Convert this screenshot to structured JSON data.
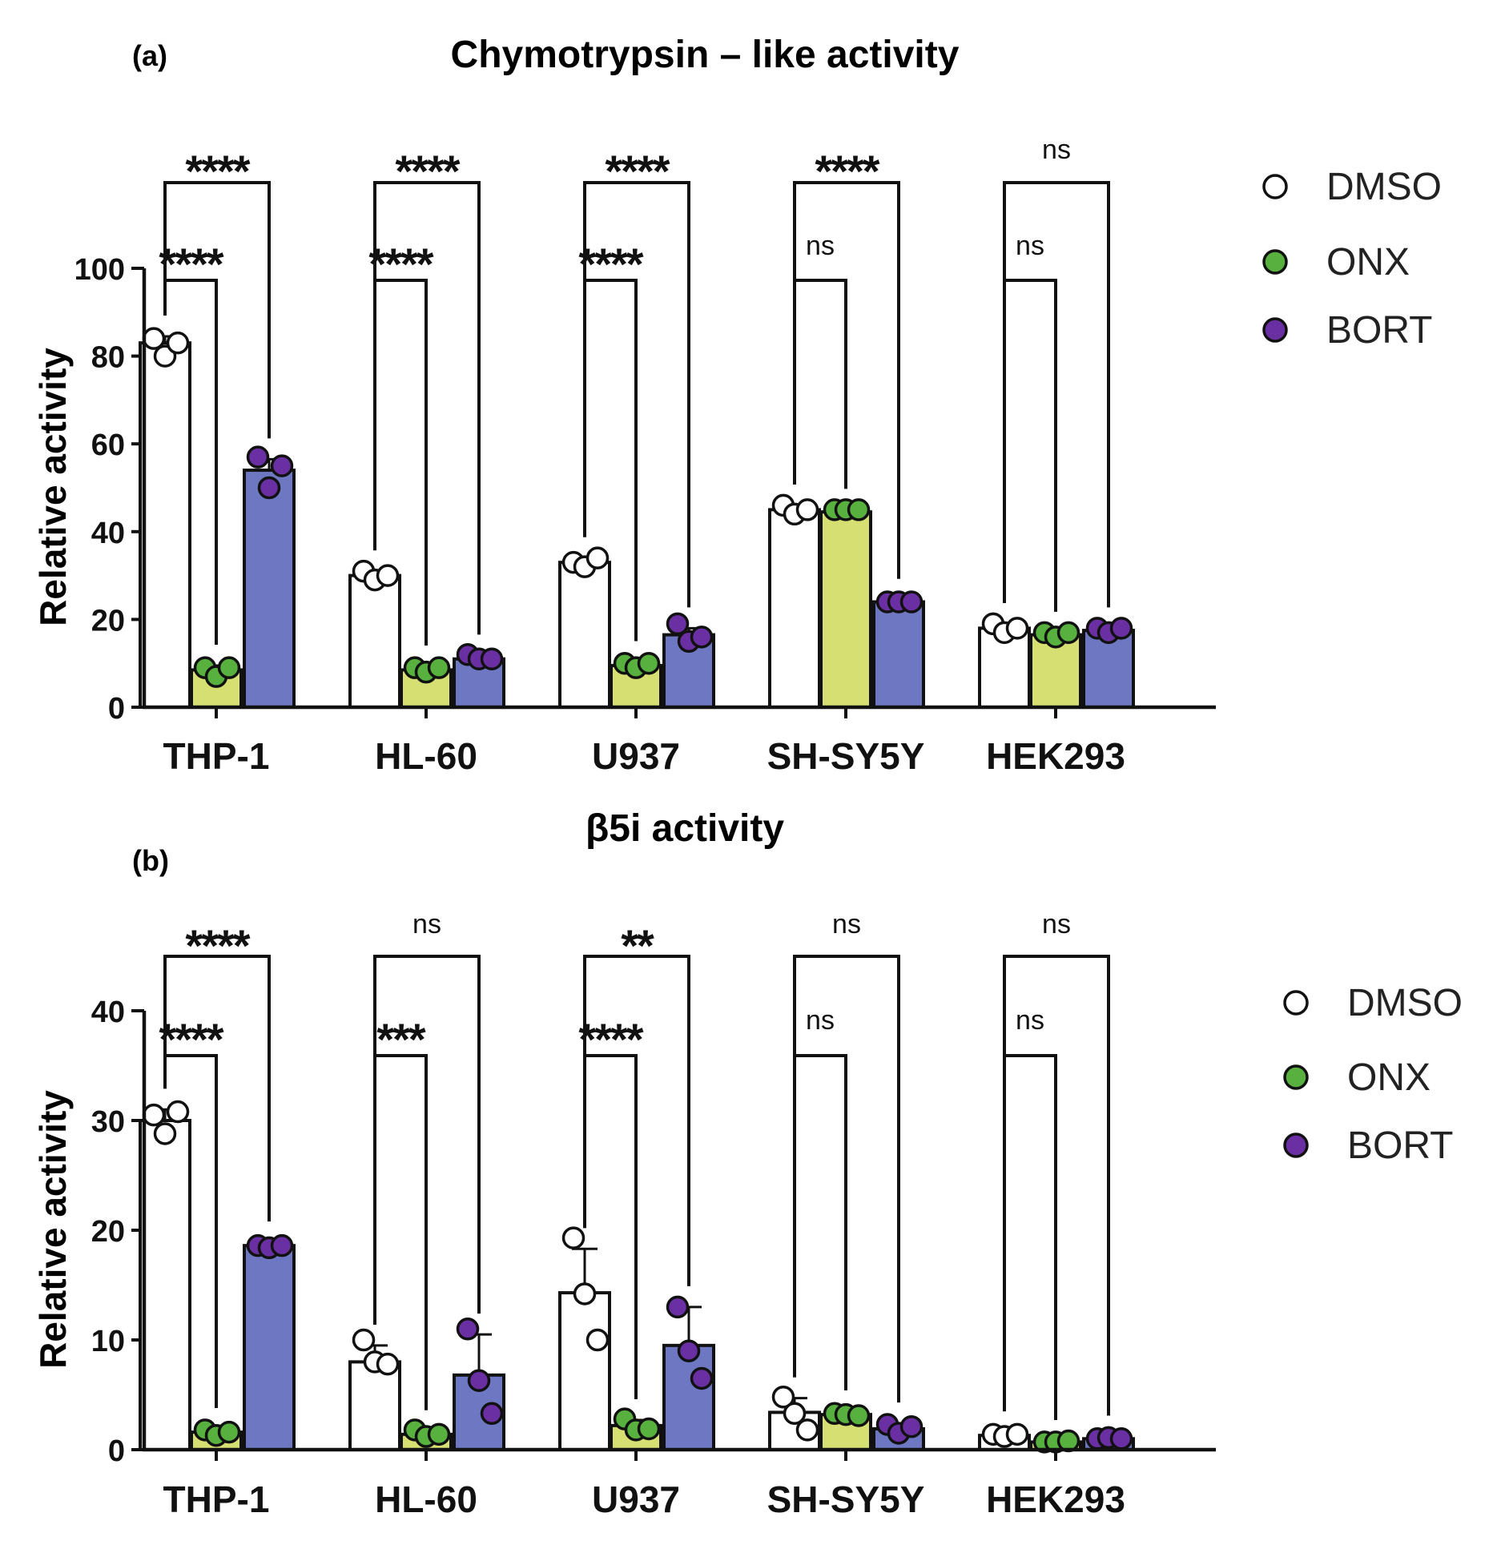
{
  "chart_data": [
    {
      "type": "bar",
      "panel_label": "(a)",
      "title": "Chymotrypsin – like activity",
      "xlabel": "",
      "ylabel": "Relative activity",
      "ylim": [
        0,
        100
      ],
      "yticks": [
        "0",
        "20",
        "40",
        "60",
        "80",
        "100"
      ],
      "categories": [
        "THP-1",
        "HL-60",
        "U937",
        "SH-SY5Y",
        "HEK293"
      ],
      "series": [
        {
          "name": "DMSO",
          "values": [
            83,
            30,
            33,
            45,
            18
          ],
          "sd": [
            1.5,
            1,
            1,
            1,
            1
          ],
          "points": [
            [
              84,
              80,
              83
            ],
            [
              31,
              29,
              30
            ],
            [
              33,
              32,
              34
            ],
            [
              46,
              44,
              45
            ],
            [
              19,
              17,
              18
            ]
          ]
        },
        {
          "name": "ONX",
          "values": [
            8.5,
            8.5,
            9.5,
            44.5,
            16.5
          ],
          "sd": [
            1,
            0.8,
            0.8,
            0.5,
            0.5
          ],
          "points": [
            [
              9,
              7,
              9
            ],
            [
              9,
              8,
              9
            ],
            [
              10,
              9,
              10
            ],
            [
              45,
              45,
              45
            ],
            [
              17,
              16,
              17
            ]
          ]
        },
        {
          "name": "BORT",
          "values": [
            54,
            11,
            16.5,
            24,
            17.5
          ],
          "sd": [
            2.5,
            0.8,
            1.5,
            0.5,
            0.5
          ],
          "points": [
            [
              57,
              50,
              55
            ],
            [
              12,
              11,
              11
            ],
            [
              19,
              15,
              16
            ],
            [
              24,
              24,
              24
            ],
            [
              18,
              17,
              18
            ]
          ]
        }
      ],
      "significance": {
        "dmso_vs_bort": [
          "****",
          "****",
          "****",
          "****",
          "ns"
        ],
        "dmso_vs_onx": [
          "****",
          "****",
          "****",
          "ns",
          "ns"
        ]
      },
      "legend": {
        "placement": "right",
        "entries": [
          "DMSO",
          "ONX",
          "BORT"
        ]
      }
    },
    {
      "type": "bar",
      "panel_label": "(b)",
      "title": "β5i activity",
      "xlabel": "",
      "ylabel": "Relative activity",
      "ylim": [
        0,
        40
      ],
      "yticks": [
        "0",
        "10",
        "20",
        "30",
        "40"
      ],
      "categories": [
        "THP-1",
        "HL-60",
        "U937",
        "SH-SY5Y",
        "HEK293"
      ],
      "series": [
        {
          "name": "DMSO",
          "values": [
            30,
            8,
            14.3,
            3.4,
            1.3
          ],
          "sd": [
            1,
            1.5,
            4,
            1.3,
            0.3
          ],
          "points": [
            [
              30.5,
              28.8,
              30.8
            ],
            [
              10,
              8,
              7.8
            ],
            [
              19.3,
              14.2,
              10
            ],
            [
              4.8,
              3.3,
              1.8
            ],
            [
              1.4,
              1.2,
              1.4
            ]
          ]
        },
        {
          "name": "ONX",
          "values": [
            1.6,
            1.4,
            2.2,
            3.2,
            0.7
          ],
          "sd": [
            0.3,
            0.3,
            0.5,
            0.3,
            0.1
          ],
          "points": [
            [
              1.8,
              1.3,
              1.6
            ],
            [
              1.8,
              1.2,
              1.4
            ],
            [
              2.8,
              1.8,
              1.9
            ],
            [
              3.3,
              3.2,
              3.1
            ],
            [
              0.7,
              0.7,
              0.8
            ]
          ]
        },
        {
          "name": "BORT",
          "values": [
            18.6,
            6.8,
            9.5,
            1.9,
            1
          ],
          "sd": [
            0.3,
            3.7,
            3.5,
            0.5,
            0.2
          ],
          "points": [
            [
              18.6,
              18.4,
              18.6
            ],
            [
              11,
              6.3,
              3.3
            ],
            [
              13,
              9,
              6.5
            ],
            [
              2.3,
              1.5,
              2.1
            ],
            [
              1,
              1.1,
              1
            ]
          ]
        }
      ],
      "significance": {
        "dmso_vs_bort": [
          "****",
          "ns",
          "**",
          "ns",
          "ns"
        ],
        "dmso_vs_onx": [
          "****",
          "***",
          "****",
          "ns",
          "ns"
        ]
      },
      "legend": {
        "placement": "right",
        "entries": [
          "DMSO",
          "ONX",
          "BORT"
        ]
      }
    }
  ],
  "colors": {
    "DMSO": "#ffffff",
    "ONX": "#d6df72",
    "BORT": "#6e78c2",
    "ONX_point": "#58b13e",
    "BORT_point": "#6a2fa3",
    "ink": "#111111"
  }
}
